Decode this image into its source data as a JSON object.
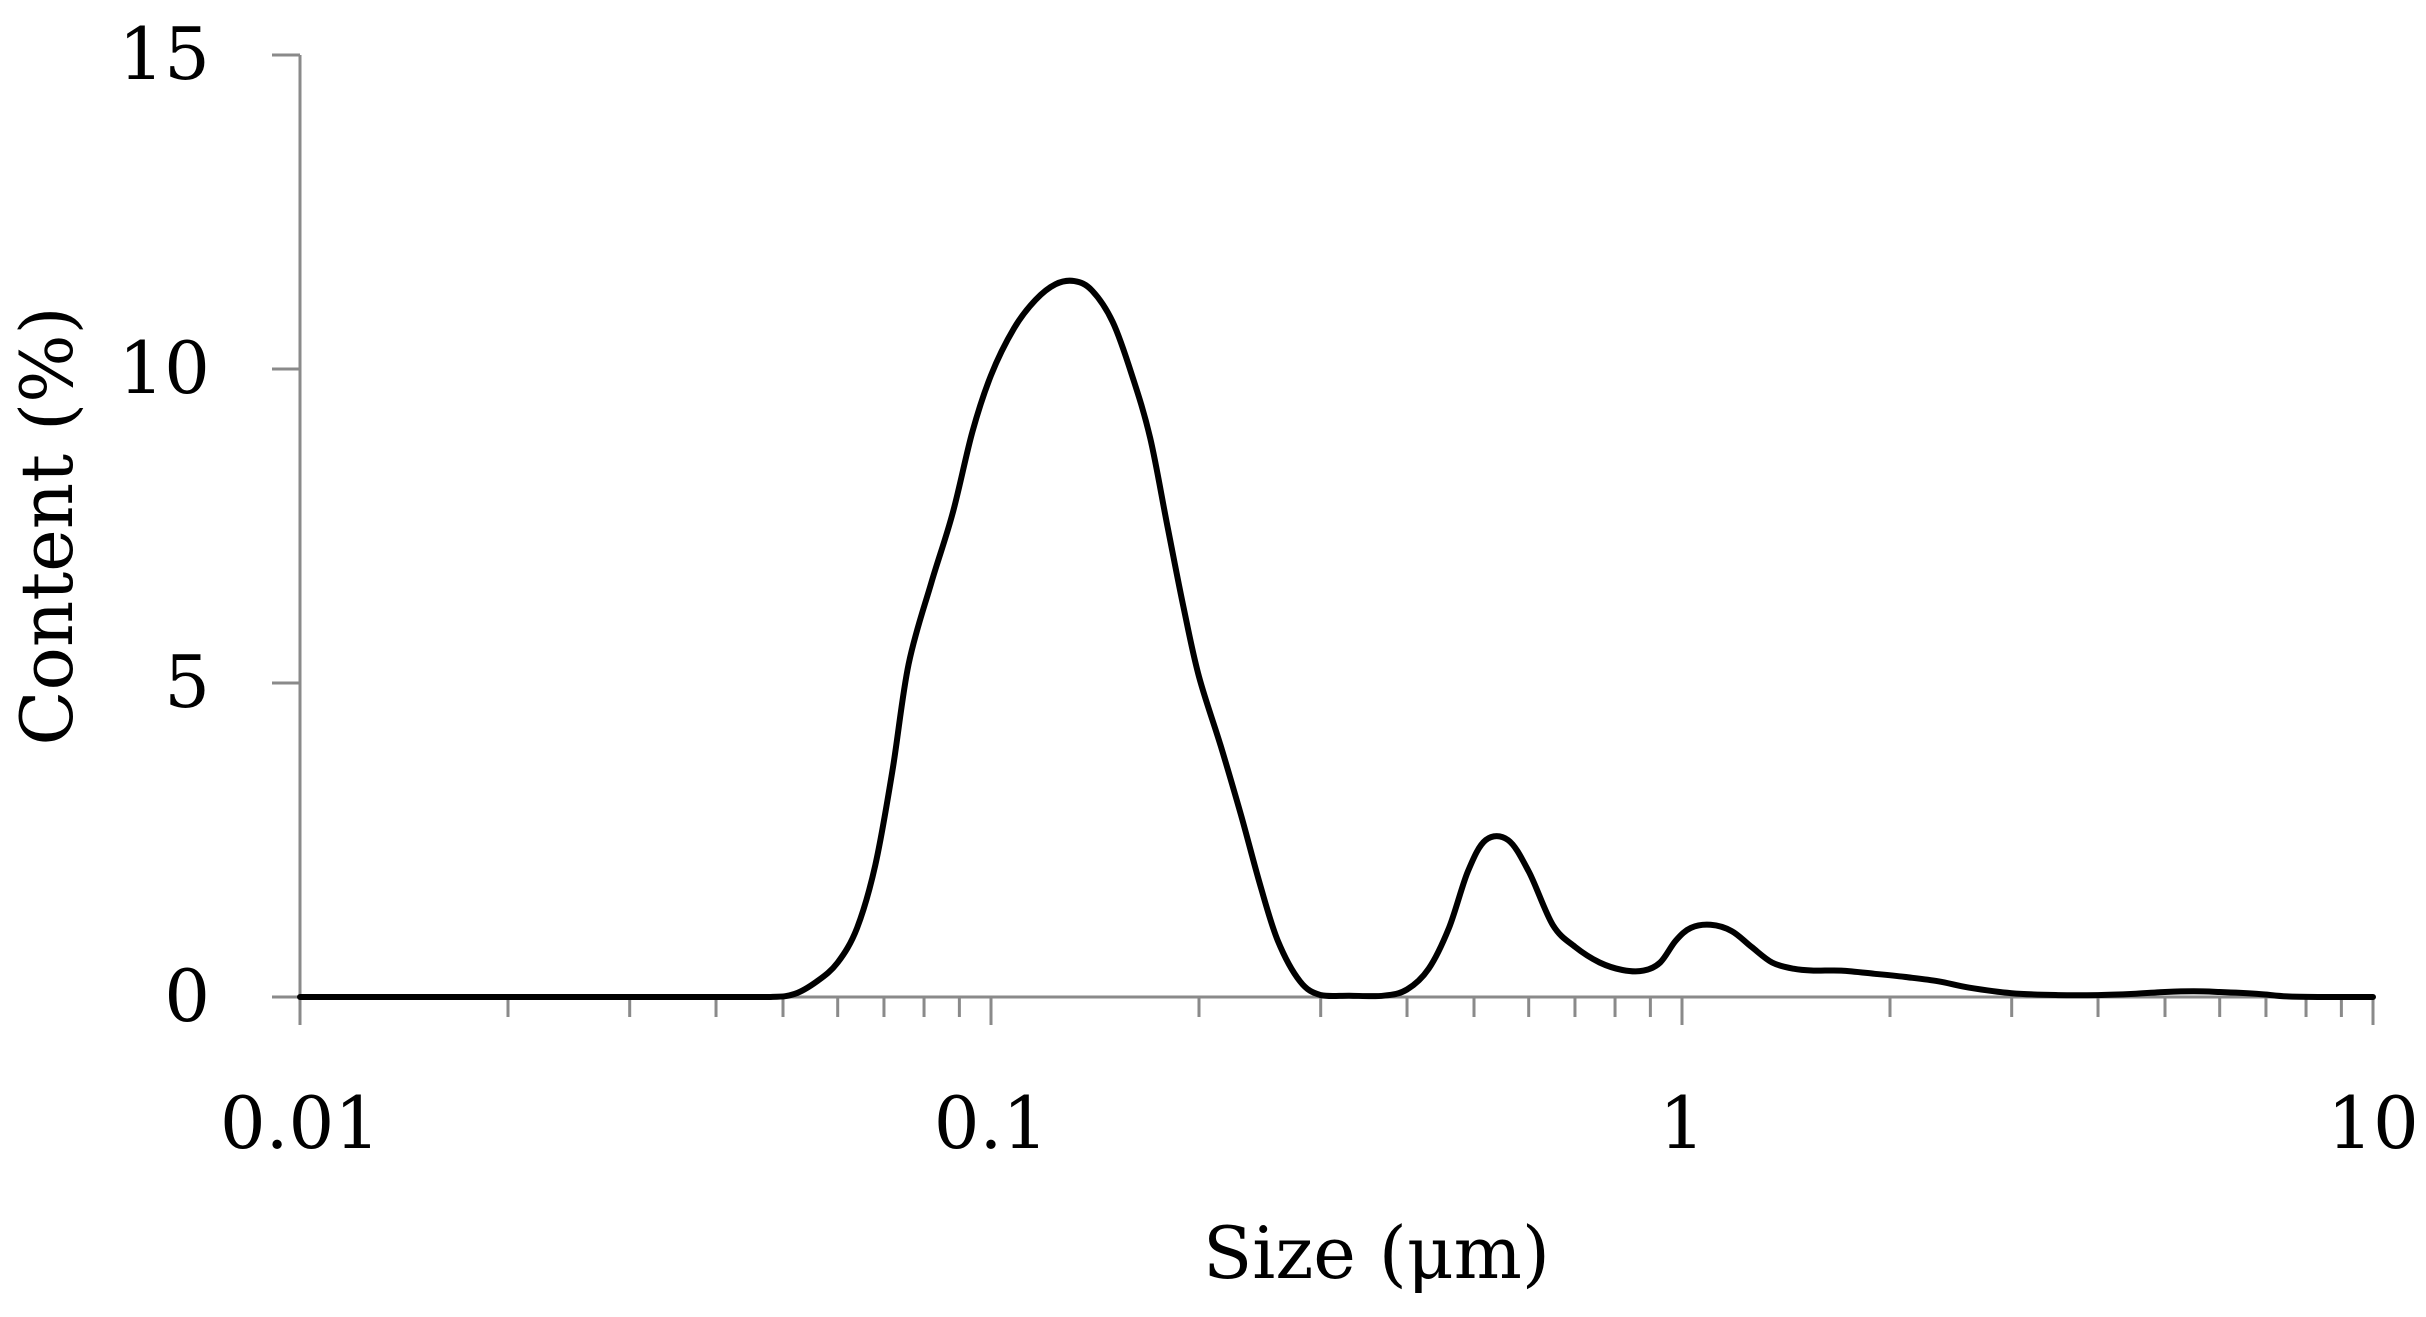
{
  "chart_data": {
    "type": "line",
    "title": "",
    "xlabel": "Size (μm)",
    "ylabel": "Content (%)",
    "x_scale": "log",
    "xlim": [
      0.01,
      10
    ],
    "ylim": [
      0,
      15
    ],
    "x_ticks": [
      {
        "value": 0.01,
        "label": "0.01"
      },
      {
        "value": 0.1,
        "label": "0.1"
      },
      {
        "value": 1,
        "label": "1"
      },
      {
        "value": 10,
        "label": "10"
      }
    ],
    "y_ticks": [
      {
        "value": 0,
        "label": "0"
      },
      {
        "value": 5,
        "label": "5"
      },
      {
        "value": 10,
        "label": "10"
      },
      {
        "value": 15,
        "label": "15"
      }
    ],
    "grid": false,
    "legend": "none",
    "series": [
      {
        "color": "#000000",
        "points": [
          [
            0.01,
            0
          ],
          [
            0.02,
            0
          ],
          [
            0.03,
            0
          ],
          [
            0.04,
            0
          ],
          [
            0.048,
            0
          ],
          [
            0.052,
            0.05
          ],
          [
            0.056,
            0.25
          ],
          [
            0.06,
            0.55
          ],
          [
            0.064,
            1.1
          ],
          [
            0.068,
            2.1
          ],
          [
            0.072,
            3.6
          ],
          [
            0.076,
            5.3
          ],
          [
            0.082,
            6.6
          ],
          [
            0.088,
            7.7
          ],
          [
            0.094,
            9.0
          ],
          [
            0.1,
            9.9
          ],
          [
            0.108,
            10.65
          ],
          [
            0.116,
            11.1
          ],
          [
            0.124,
            11.35
          ],
          [
            0.132,
            11.4
          ],
          [
            0.14,
            11.25
          ],
          [
            0.15,
            10.75
          ],
          [
            0.16,
            9.9
          ],
          [
            0.17,
            8.9
          ],
          [
            0.18,
            7.5
          ],
          [
            0.19,
            6.2
          ],
          [
            0.2,
            5.1
          ],
          [
            0.215,
            4.0
          ],
          [
            0.23,
            2.9
          ],
          [
            0.245,
            1.8
          ],
          [
            0.26,
            0.9
          ],
          [
            0.28,
            0.25
          ],
          [
            0.3,
            0.03
          ],
          [
            0.33,
            0.02
          ],
          [
            0.37,
            0.02
          ],
          [
            0.4,
            0.12
          ],
          [
            0.43,
            0.45
          ],
          [
            0.46,
            1.1
          ],
          [
            0.49,
            2.0
          ],
          [
            0.52,
            2.5
          ],
          [
            0.56,
            2.5
          ],
          [
            0.6,
            2.0
          ],
          [
            0.65,
            1.15
          ],
          [
            0.7,
            0.8
          ],
          [
            0.76,
            0.55
          ],
          [
            0.82,
            0.43
          ],
          [
            0.88,
            0.42
          ],
          [
            0.93,
            0.55
          ],
          [
            0.98,
            0.9
          ],
          [
            1.03,
            1.1
          ],
          [
            1.1,
            1.15
          ],
          [
            1.18,
            1.05
          ],
          [
            1.26,
            0.8
          ],
          [
            1.35,
            0.55
          ],
          [
            1.45,
            0.45
          ],
          [
            1.55,
            0.42
          ],
          [
            1.7,
            0.42
          ],
          [
            1.9,
            0.37
          ],
          [
            2.1,
            0.32
          ],
          [
            2.35,
            0.25
          ],
          [
            2.6,
            0.15
          ],
          [
            3.0,
            0.06
          ],
          [
            3.5,
            0.03
          ],
          [
            4.0,
            0.03
          ],
          [
            4.5,
            0.05
          ],
          [
            5.0,
            0.08
          ],
          [
            5.5,
            0.09
          ],
          [
            6.0,
            0.08
          ],
          [
            6.8,
            0.05
          ],
          [
            7.5,
            0.01
          ],
          [
            8.5,
            0
          ],
          [
            10.0,
            0
          ]
        ]
      }
    ]
  }
}
